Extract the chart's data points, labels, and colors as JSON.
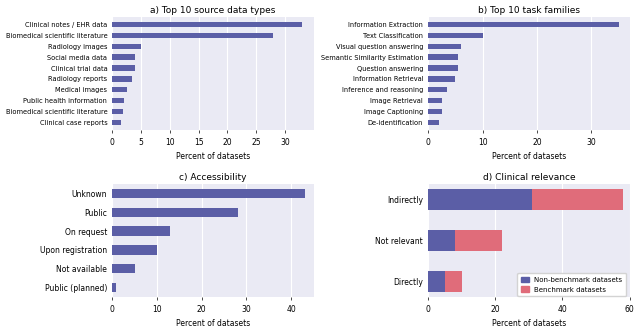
{
  "a_labels": [
    "Clinical notes / EHR data",
    "Biomedical scientific literature",
    "Radiology images",
    "Social media data",
    "Clinical trial data",
    "Radiology reports",
    "Medical images",
    "Public health information",
    "Biomedical scientific literature",
    "Clinical case reports"
  ],
  "a_values": [
    33,
    28,
    5,
    4,
    4,
    3.5,
    2.5,
    2,
    1.8,
    1.5
  ],
  "a_title": "a) Top 10 source data types",
  "a_xlim": [
    0,
    35
  ],
  "a_xticks": [
    0,
    5,
    10,
    15,
    20,
    25,
    30
  ],
  "b_labels": [
    "Information Extraction",
    "Text Classification",
    "Visual question answering",
    "Semantic Similarity Estimation",
    "Question answering",
    "Information Retrieval",
    "Inference and reasoning",
    "Image Retrieval",
    "Image Captioning",
    "De-identification"
  ],
  "b_values": [
    35,
    10,
    6,
    5.5,
    5.5,
    5,
    3.5,
    2.5,
    2.5,
    2
  ],
  "b_title": "b) Top 10 task families",
  "b_xlim": [
    0,
    37
  ],
  "b_xticks": [
    0,
    10,
    20,
    30
  ],
  "c_labels": [
    "Unknown",
    "Public",
    "On request",
    "Upon registration",
    "Not available",
    "Public (planned)"
  ],
  "c_values": [
    43,
    28,
    13,
    10,
    5,
    0.8
  ],
  "c_title": "c) Accessibility",
  "c_xlim": [
    0,
    45
  ],
  "c_xticks": [
    0,
    10,
    20,
    30,
    40
  ],
  "d_labels": [
    "Indirectly",
    "Not relevant",
    "Directly"
  ],
  "d_nonbenchmark": [
    31,
    8,
    5
  ],
  "d_benchmark": [
    27,
    14,
    5
  ],
  "d_title": "d) Clinical relevance",
  "d_xlim": [
    0,
    60
  ],
  "d_xticks": [
    0,
    20,
    40,
    60
  ],
  "bar_color": "#5b5ea6",
  "benchmark_color": "#e06c7a",
  "nonbenchmark_color": "#5b5ea6",
  "bg_color": "#eaeaf4",
  "xlabel": "Percent of datasets",
  "bar_height": 0.5,
  "legend_nonbenchmark": "Non-benchmark datasets",
  "legend_benchmark": "Benchmark datasets"
}
